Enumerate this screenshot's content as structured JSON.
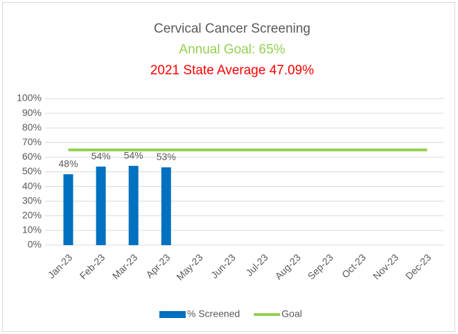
{
  "chart_data": {
    "type": "bar",
    "title": "Cervical Cancer Screening",
    "subtitle": "Annual Goal: 65%",
    "annotation": "2021 State Average 47.09%",
    "categories": [
      "Jan-23",
      "Feb-23",
      "Mar-23",
      "Apr-23",
      "May-23",
      "Jun-23",
      "Jul-23",
      "Aug-23",
      "Sep-23",
      "Oct-23",
      "Nov-23",
      "Dec-23"
    ],
    "series": [
      {
        "name": "% Screened",
        "type": "bar",
        "color": "#0070c0",
        "values": [
          48.4,
          53.6,
          54.1,
          53.1,
          null,
          null,
          null,
          null,
          null,
          null,
          null,
          null
        ],
        "value_labels": [
          "48%",
          "54%",
          "54%",
          "53%",
          null,
          null,
          null,
          null,
          null,
          null,
          null,
          null
        ]
      },
      {
        "name": "Goal",
        "type": "line",
        "color": "#92d050",
        "values": [
          65,
          65,
          65,
          65,
          65,
          65,
          65,
          65,
          65,
          65,
          65,
          65
        ]
      }
    ],
    "ylim": [
      0,
      100
    ],
    "yticks": [
      {
        "value": 0,
        "label": "0%"
      },
      {
        "value": 10,
        "label": "10%"
      },
      {
        "value": 20,
        "label": "20%"
      },
      {
        "value": 30,
        "label": "30%"
      },
      {
        "value": 40,
        "label": "40%"
      },
      {
        "value": 50,
        "label": "50%"
      },
      {
        "value": 60,
        "label": "60%"
      },
      {
        "value": 70,
        "label": "70%"
      },
      {
        "value": 80,
        "label": "80%"
      },
      {
        "value": 90,
        "label": "90%"
      },
      {
        "value": 100,
        "label": "100%"
      }
    ],
    "grid": true,
    "legend": "bottom"
  }
}
